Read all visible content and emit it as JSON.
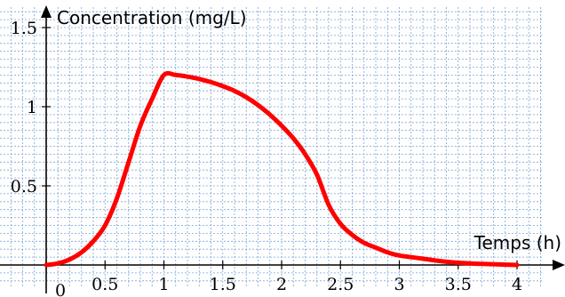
{
  "chart_data": {
    "type": "line",
    "title": "",
    "xlabel": "Temps (h)",
    "ylabel": "Concentration (mg/L)",
    "xlim": [
      -0.15,
      4.45
    ],
    "ylim": [
      0,
      1.6
    ],
    "x_ticks": [
      {
        "value": 0,
        "label": "0"
      },
      {
        "value": 0.5,
        "label": "0.5"
      },
      {
        "value": 1,
        "label": "1"
      },
      {
        "value": 1.5,
        "label": "1.5"
      },
      {
        "value": 2,
        "label": "2"
      },
      {
        "value": 2.5,
        "label": "2.5"
      },
      {
        "value": 3,
        "label": "3"
      },
      {
        "value": 3.5,
        "label": "3.5"
      },
      {
        "value": 4,
        "label": "4"
      }
    ],
    "y_ticks": [
      {
        "value": 0.5,
        "label": "0.5"
      },
      {
        "value": 1,
        "label": "1"
      },
      {
        "value": 1.5,
        "label": "1.5"
      }
    ],
    "grid": true,
    "grid_step": {
      "x": 0.1,
      "y": 0.05
    },
    "colors": {
      "curve": "#ff0000",
      "grid": "#7aa6d6",
      "axis": "#000000"
    },
    "series": [
      {
        "x": [
          0,
          0.1,
          0.2,
          0.3,
          0.4,
          0.5,
          0.6,
          0.7,
          0.8,
          0.9,
          1.0,
          1.1,
          1.2,
          1.3,
          1.4,
          1.5,
          1.6,
          1.7,
          1.8,
          1.9,
          2.0,
          2.1,
          2.2,
          2.3,
          2.4,
          2.5,
          2.6,
          2.7,
          2.8,
          2.9,
          3.0,
          3.2,
          3.4,
          3.6,
          3.8,
          4.0
        ],
        "y": [
          0,
          0.01,
          0.035,
          0.08,
          0.15,
          0.25,
          0.42,
          0.65,
          0.88,
          1.05,
          1.2,
          1.2,
          1.19,
          1.175,
          1.155,
          1.13,
          1.1,
          1.06,
          1.01,
          0.95,
          0.88,
          0.8,
          0.7,
          0.57,
          0.38,
          0.26,
          0.19,
          0.14,
          0.11,
          0.08,
          0.06,
          0.04,
          0.02,
          0.01,
          0.005,
          0
        ]
      }
    ]
  }
}
